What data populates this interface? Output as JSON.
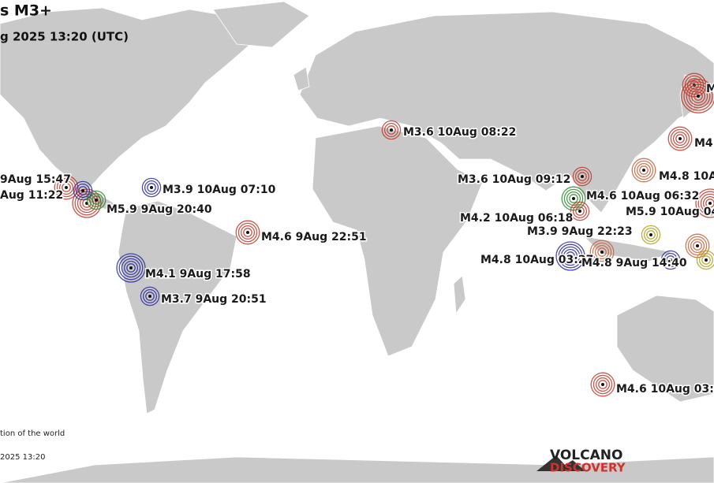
{
  "header": {
    "title": "s M3+",
    "subtitle": "g 2025 13:20 (UTC)"
  },
  "events": [
    {
      "label": "M3.6 10Aug 08:22"
    },
    {
      "label": "9Aug 15:47"
    },
    {
      "label": "Aug 11:22"
    },
    {
      "label": "M3.9 10Aug 07:10"
    },
    {
      "label": "M5.9  9Aug 20:40"
    },
    {
      "label": "M4.6  9Aug 22:51"
    },
    {
      "label": "M4.1  9Aug 17:58"
    },
    {
      "label": "M3.7  9Aug 20:51"
    },
    {
      "label": "M3.6 10Aug 09:12"
    },
    {
      "label": "M4.6 10Aug 06:32"
    },
    {
      "label": "M4.2 10Aug 06:18"
    },
    {
      "label": "M3.9  9Aug 22:23"
    },
    {
      "label": "M4.8 10Aug 03:27"
    },
    {
      "label": "M4.8  9Aug 14:40"
    },
    {
      "label": "M4.8 10A"
    },
    {
      "label": "M5.9 10Aug 04"
    },
    {
      "label": "M4"
    },
    {
      "label": "M"
    },
    {
      "label": "M4.6 10Aug 03:"
    }
  ],
  "footer": {
    "note": "tion of the world",
    "timestamp": "2025 13:20"
  },
  "logo": {
    "line1": "VOLCANO",
    "line2": "DISCOVERY"
  }
}
